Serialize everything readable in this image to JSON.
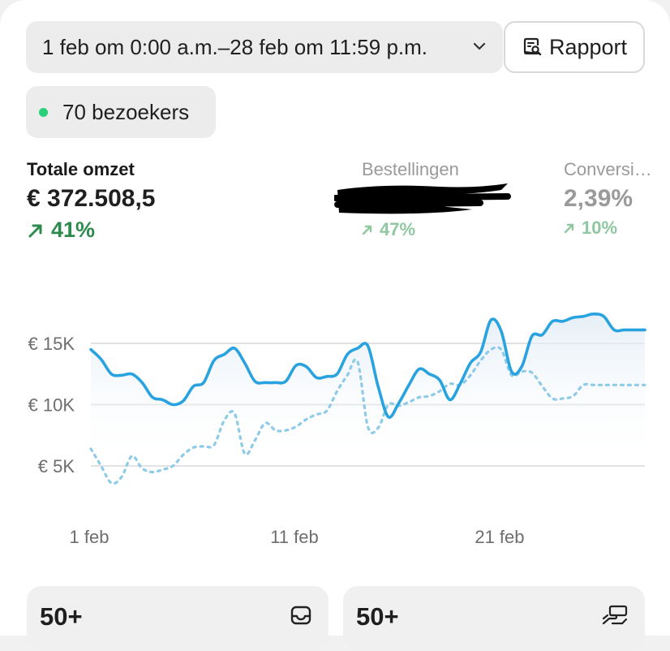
{
  "date_range": {
    "label": "1 feb om 0:00 a.m.–28 feb om 11:59 p.m."
  },
  "report_button": {
    "label": "Rapport"
  },
  "visitors": {
    "label": "70 bezoekers",
    "status_color": "#29d07a"
  },
  "metrics": [
    {
      "label": "Totale omzet",
      "value": "€ 372.508,5",
      "change": "41%",
      "direction": "up",
      "active": true
    },
    {
      "label": "Bestellingen",
      "value": "",
      "change": "47%",
      "direction": "up",
      "redacted": true
    },
    {
      "label": "Conversi…",
      "value": "2,39%",
      "change": "10%",
      "direction": "up"
    }
  ],
  "colors": {
    "current": "#29a3e0",
    "previous": "#8ecbe8",
    "positive": "#2c8a4c",
    "positive_faded": "#8fc7a0"
  },
  "chart_data": {
    "type": "line",
    "title": "",
    "xlabel": "",
    "ylabel": "",
    "x_ticks": [
      "1 feb",
      "11 feb",
      "21 feb"
    ],
    "y_ticks": [
      "€ 5K",
      "€ 10K",
      "€ 15K"
    ],
    "y_tick_values": [
      5000,
      10000,
      15000
    ],
    "ylim": [
      1500,
      18000
    ],
    "grid": true,
    "x": [
      1,
      1.5,
      2,
      2.5,
      3,
      3.5,
      4,
      4.5,
      5,
      5.5,
      6,
      6.5,
      7,
      7.5,
      8,
      8.5,
      9,
      9.5,
      10,
      10.5,
      11,
      11.5,
      12,
      12.5,
      13,
      13.5,
      14,
      14.5,
      15,
      15.5,
      16,
      16.5,
      17,
      17.5,
      18,
      18.5,
      19,
      19.5,
      20,
      20.5,
      21,
      21.5,
      22,
      22.5,
      23,
      23.5,
      24,
      24.5,
      25,
      25.5,
      26,
      26.5,
      27,
      27.5,
      28
    ],
    "series": [
      {
        "values": [
          14500,
          13700,
          12500,
          12400,
          12500,
          11800,
          10600,
          10400,
          10000,
          10300,
          11500,
          11800,
          13600,
          14100,
          14600,
          13400,
          11900,
          11800,
          11800,
          11900,
          13200,
          13100,
          12200,
          12300,
          12500,
          14100,
          14600,
          14800,
          11500,
          9000,
          10100,
          11600,
          12900,
          12500,
          12000,
          10400,
          11700,
          13400,
          14300,
          16900,
          16000,
          12700,
          13100,
          15600,
          15700,
          16800,
          16800,
          17100,
          17200,
          17400,
          17200,
          16100,
          16100,
          16100,
          16100
        ],
        "style": "solid"
      },
      {
        "values": [
          6400,
          5000,
          3600,
          4100,
          5800,
          4800,
          4500,
          4700,
          5000,
          5900,
          6500,
          6600,
          6700,
          8700,
          9300,
          6000,
          7100,
          8500,
          7900,
          7900,
          8200,
          8800,
          9200,
          9500,
          11100,
          12400,
          13500,
          8200,
          8100,
          10000,
          9900,
          10200,
          10600,
          10700,
          11100,
          11700,
          11600,
          12400,
          13600,
          14500,
          14500,
          12400,
          12700,
          12600,
          11500,
          10500,
          10500,
          10700,
          11600,
          11600,
          11600,
          11600,
          11600,
          11600,
          11600
        ],
        "style": "dotted"
      }
    ]
  },
  "tiles": [
    {
      "value": "50+",
      "icon": "inbox-icon"
    },
    {
      "value": "50+",
      "icon": "hand-cash-icon"
    }
  ]
}
